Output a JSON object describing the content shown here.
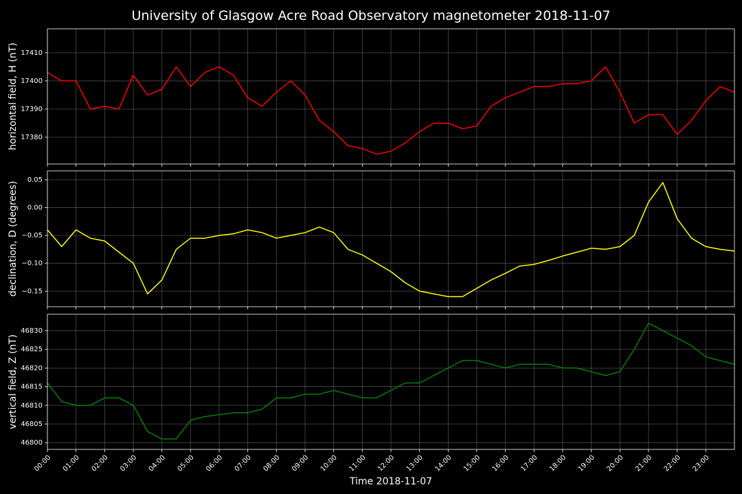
{
  "chart_data": [
    {
      "type": "line",
      "title": "University of Glasgow Acre Road Observatory magnetometer 2018-11-07",
      "y_label": "horizontal field, H (nT)",
      "x": [
        0,
        0.5,
        1,
        1.5,
        2,
        2.5,
        3,
        3.5,
        4,
        4.5,
        5,
        5.5,
        6,
        6.5,
        7,
        7.5,
        8,
        8.5,
        9,
        9.5,
        10,
        10.5,
        11,
        11.5,
        12,
        12.5,
        13,
        13.5,
        14,
        14.5,
        15,
        15.5,
        16,
        16.5,
        17,
        17.5,
        18,
        18.5,
        19,
        19.5,
        20,
        20.5,
        21,
        21.5,
        22,
        22.5,
        23,
        23.5,
        24
      ],
      "series": [
        {
          "color": "#ff0000",
          "values": [
            17403,
            17400,
            17400,
            17390,
            17391,
            17390,
            17402,
            17395,
            17397,
            17405,
            17398,
            17403,
            17405,
            17402,
            17394,
            17391,
            17396,
            17400,
            17395,
            17386,
            17382,
            17377,
            17376,
            17374,
            17375,
            17378,
            17382,
            17385,
            17385,
            17383,
            17384,
            17391,
            17394,
            17396,
            17398,
            17398,
            17399,
            17399,
            17400,
            17405,
            17396,
            17385,
            17388,
            17388,
            17381,
            17386,
            17393,
            17398,
            17396
          ]
        }
      ],
      "xlim": [
        0,
        24
      ],
      "ylim": [
        17370.5,
        17418.5
      ],
      "yticks": [
        17380,
        17390,
        17400,
        17410
      ],
      "grid": true
    },
    {
      "type": "line",
      "y_label": "declination, D (degrees)",
      "x": [
        0,
        0.5,
        1,
        1.5,
        2,
        2.5,
        3,
        3.5,
        4,
        4.5,
        5,
        5.5,
        6,
        6.5,
        7,
        7.5,
        8,
        8.5,
        9,
        9.5,
        10,
        10.5,
        11,
        11.5,
        12,
        12.5,
        13,
        13.5,
        14,
        14.5,
        15,
        15.5,
        16,
        16.5,
        17,
        17.5,
        18,
        18.5,
        19,
        19.5,
        20,
        20.5,
        21,
        21.5,
        22,
        22.5,
        23,
        23.5,
        24
      ],
      "series": [
        {
          "color": "#ffff00",
          "values": [
            -0.04,
            -0.07,
            -0.04,
            -0.055,
            -0.06,
            -0.08,
            -0.1,
            -0.155,
            -0.13,
            -0.075,
            -0.055,
            -0.055,
            -0.05,
            -0.047,
            -0.04,
            -0.045,
            -0.055,
            -0.05,
            -0.045,
            -0.035,
            -0.045,
            -0.075,
            -0.085,
            -0.1,
            -0.115,
            -0.135,
            -0.15,
            -0.155,
            -0.16,
            -0.16,
            -0.145,
            -0.13,
            -0.118,
            -0.105,
            -0.102,
            -0.095,
            -0.087,
            -0.08,
            -0.073,
            -0.075,
            -0.07,
            -0.05,
            0.01,
            0.045,
            -0.02,
            -0.055,
            -0.07,
            -0.075,
            -0.078
          ]
        }
      ],
      "xlim": [
        0,
        24
      ],
      "ylim": [
        -0.178,
        0.066
      ],
      "yticks": [
        {
          "value": -0.15,
          "label": "−0.15"
        },
        {
          "value": -0.1,
          "label": "−0.10"
        },
        {
          "value": -0.05,
          "label": "−0.05"
        },
        {
          "value": 0,
          "label": "0.00"
        },
        {
          "value": 0.05,
          "label": "0.05"
        }
      ],
      "grid": true
    },
    {
      "type": "line",
      "y_label": "vertical field, Z (nT)",
      "x_label": "Time 2018-11-07",
      "x": [
        0,
        0.5,
        1,
        1.5,
        2,
        2.5,
        3,
        3.5,
        4,
        4.5,
        5,
        5.5,
        6,
        6.5,
        7,
        7.5,
        8,
        8.5,
        9,
        9.5,
        10,
        10.5,
        11,
        11.5,
        12,
        12.5,
        13,
        13.5,
        14,
        14.5,
        15,
        15.5,
        16,
        16.5,
        17,
        17.5,
        18,
        18.5,
        19,
        19.5,
        20,
        20.5,
        21,
        21.5,
        22,
        22.5,
        23,
        23.5,
        24
      ],
      "series": [
        {
          "color": "#008000",
          "values": [
            46816,
            46811,
            46810,
            46810,
            46812,
            46812,
            46810,
            46803,
            46801,
            46801,
            46806,
            46807,
            46807.5,
            46808,
            46808,
            46809,
            46812,
            46812,
            46813,
            46813,
            46814,
            46813,
            46812,
            46812,
            46814,
            46816,
            46816,
            46818,
            46820,
            46822,
            46822,
            46821,
            46820,
            46821,
            46821,
            46821,
            46820,
            46820,
            46819,
            46818,
            46819,
            46825,
            46832,
            46830,
            46828,
            46826,
            46823,
            46822,
            46821
          ]
        }
      ],
      "xlim": [
        0,
        24
      ],
      "ylim": [
        46798.2,
        46834.4
      ],
      "yticks": [
        46800,
        46805,
        46810,
        46815,
        46820,
        46825,
        46830
      ],
      "xticks": [
        {
          "value": 0,
          "label": "00:00"
        },
        {
          "value": 1,
          "label": "01:00"
        },
        {
          "value": 2,
          "label": "02:00"
        },
        {
          "value": 3,
          "label": "03:00"
        },
        {
          "value": 4,
          "label": "04:00"
        },
        {
          "value": 5,
          "label": "05:00"
        },
        {
          "value": 6,
          "label": "06:00"
        },
        {
          "value": 7,
          "label": "07:00"
        },
        {
          "value": 8,
          "label": "08:00"
        },
        {
          "value": 9,
          "label": "09:00"
        },
        {
          "value": 10,
          "label": "10:00"
        },
        {
          "value": 11,
          "label": "11:00"
        },
        {
          "value": 12,
          "label": "12:00"
        },
        {
          "value": 13,
          "label": "13:00"
        },
        {
          "value": 14,
          "label": "14:00"
        },
        {
          "value": 15,
          "label": "15:00"
        },
        {
          "value": 16,
          "label": "16:00"
        },
        {
          "value": 17,
          "label": "17:00"
        },
        {
          "value": 18,
          "label": "18:00"
        },
        {
          "value": 19,
          "label": "19:00"
        },
        {
          "value": 20,
          "label": "20:00"
        },
        {
          "value": 21,
          "label": "21:00"
        },
        {
          "value": 22,
          "label": "22:00"
        },
        {
          "value": 23,
          "label": "23:00"
        }
      ],
      "grid": true
    }
  ]
}
